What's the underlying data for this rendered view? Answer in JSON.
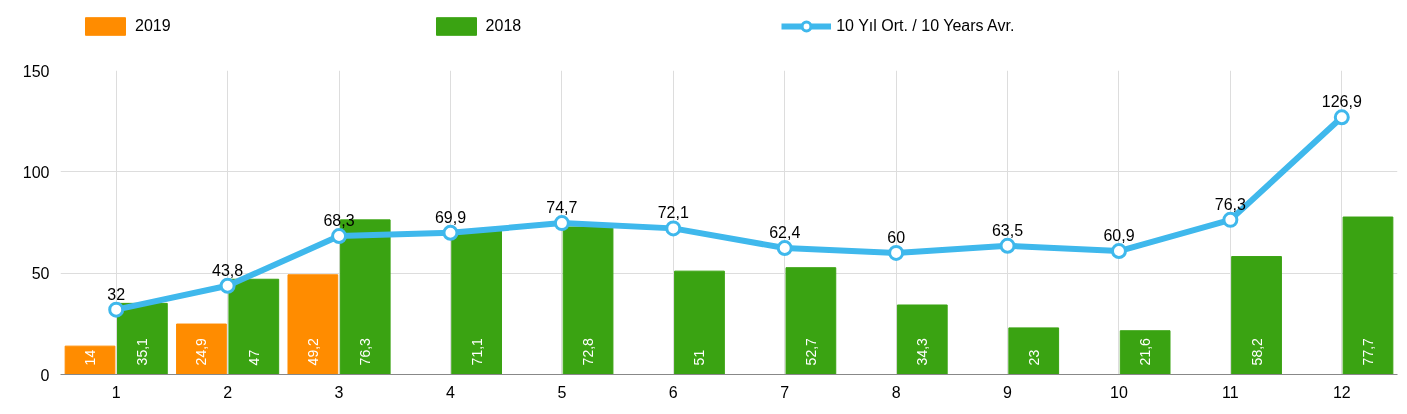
{
  "chart_data": {
    "type": "bar",
    "categories": [
      "1",
      "2",
      "3",
      "4",
      "5",
      "6",
      "7",
      "8",
      "9",
      "10",
      "11",
      "12"
    ],
    "series": [
      {
        "name": "2019",
        "color": "#ff8c00",
        "values": [
          14,
          24.9,
          49.2,
          null,
          null,
          null,
          null,
          null,
          null,
          null,
          null,
          null
        ],
        "value_labels": [
          "14",
          "24,9",
          "49,2",
          null,
          null,
          null,
          null,
          null,
          null,
          null,
          null,
          null
        ]
      },
      {
        "name": "2018",
        "color": "#3aa312",
        "values": [
          35.1,
          47,
          76.3,
          71.1,
          72.8,
          51,
          52.7,
          34.3,
          23,
          21.6,
          58.2,
          77.7
        ],
        "value_labels": [
          "35,1",
          "47",
          "76,3",
          "71,1",
          "72,8",
          "51",
          "52,7",
          "34,3",
          "23",
          "21,6",
          "58,2",
          "77,7"
        ]
      },
      {
        "name": "10 Yıl Ort. / 10 Years Avr.",
        "type": "line",
        "color": "#3fb8ec",
        "marker": "circle",
        "values": [
          32,
          43.8,
          68.3,
          69.9,
          74.7,
          72.1,
          62.4,
          60,
          63.5,
          60.9,
          76.3,
          126.9
        ],
        "value_labels": [
          "32",
          "43,8",
          "68,3",
          "69,9",
          "74,7",
          "72,1",
          "62,4",
          "60",
          "63,5",
          "60,9",
          "76,3",
          "126,9"
        ]
      }
    ],
    "ylim": [
      0,
      150
    ],
    "yticks": [
      0,
      50,
      100,
      150
    ],
    "grid": true,
    "legend": "top"
  }
}
